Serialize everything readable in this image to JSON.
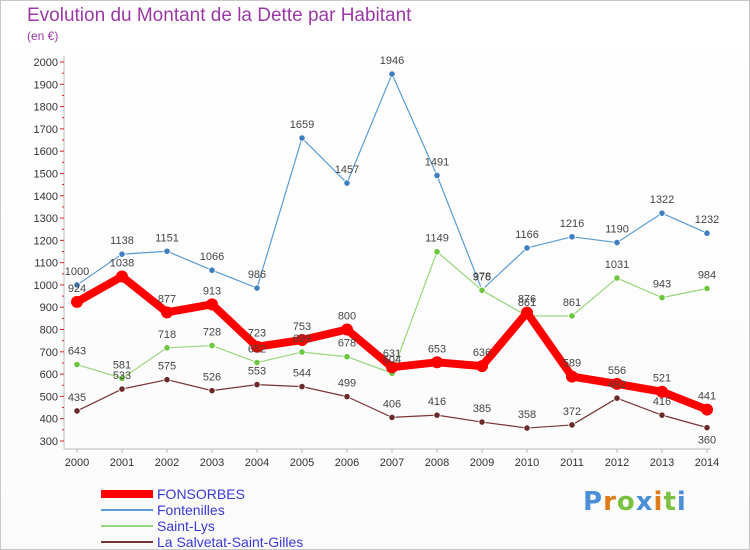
{
  "chart_data": {
    "type": "line",
    "title": "Evolution du Montant de la Dette par Habitant",
    "subtitle": "(en €)",
    "xlabel": "",
    "ylabel": "",
    "x": [
      "2000",
      "2001",
      "2002",
      "2003",
      "2004",
      "2005",
      "2006",
      "2007",
      "2008",
      "2009",
      "2010",
      "2011",
      "2012",
      "2013",
      "2014"
    ],
    "ylim": [
      300,
      2000
    ],
    "yticks": [
      300,
      400,
      500,
      600,
      700,
      800,
      900,
      1000,
      1100,
      1200,
      1300,
      1400,
      1500,
      1600,
      1700,
      1800,
      1900,
      2000
    ],
    "grid": false,
    "legend_position": "bottom-left",
    "series": [
      {
        "name": "Fontenilles",
        "color": "#5b9bd5",
        "marker_color": "#3f7fc0",
        "line_width": 1.2,
        "values": [
          1000,
          1138,
          1151,
          1066,
          986,
          1659,
          1457,
          1946,
          1491,
          978,
          1166,
          1216,
          1190,
          1322,
          1232
        ]
      },
      {
        "name": "Saint-Lys",
        "color": "#97d67a",
        "marker_color": "#6cc63e",
        "line_width": 1.2,
        "values": [
          643,
          581,
          718,
          728,
          652,
          699,
          678,
          604,
          1149,
          976,
          861,
          861,
          1031,
          943,
          984
        ]
      },
      {
        "name": "La Salvetat-Saint-Gilles",
        "color": "#7a3434",
        "marker_color": "#6b2a2a",
        "line_width": 1.2,
        "values": [
          435,
          533,
          575,
          526,
          553,
          544,
          499,
          406,
          416,
          385,
          358,
          372,
          492,
          416,
          360
        ]
      },
      {
        "name": "FONSORBES",
        "color": "#ff0000",
        "marker_color": "#ff0000",
        "line_width": 8,
        "values": [
          924,
          1038,
          877,
          913,
          723,
          753,
          800,
          631,
          653,
          636,
          876,
          589,
          556,
          521,
          441
        ]
      }
    ],
    "data_labels": [
      {
        "series": "Fontenilles",
        "labels": [
          "1000",
          "1138",
          "1151",
          "1066",
          "986",
          "1659",
          "1457",
          "1946",
          "1491",
          "978",
          "1166",
          "1216",
          "1190",
          "1322",
          "1232"
        ],
        "offsets": [
          -10,
          -10,
          -10,
          -10,
          -10,
          -10,
          -10,
          -10,
          -10,
          -10,
          -10,
          -10,
          -10,
          -10,
          -10
        ]
      },
      {
        "series": "Saint-Lys",
        "labels": [
          "643",
          "581",
          "718",
          "728",
          "652",
          "699",
          "678",
          "604",
          "1149",
          "976",
          "861",
          "861",
          "1031",
          "943",
          "984"
        ],
        "offsets": [
          -10,
          -10,
          -10,
          -10,
          -10,
          -10,
          -10,
          -10,
          -10,
          -10,
          -10,
          -10,
          -10,
          -10,
          -10
        ]
      },
      {
        "series": "La Salvetat-Saint-Gilles",
        "labels": [
          "435",
          "533",
          "575",
          "526",
          "553",
          "544",
          "499",
          "406",
          "416",
          "385",
          "358",
          "372",
          "492",
          "416",
          "360"
        ],
        "offsets": [
          -10,
          -10,
          -10,
          -10,
          -10,
          -10,
          -10,
          -10,
          -10,
          -10,
          -10,
          -10,
          -10,
          -10,
          16
        ]
      },
      {
        "series": "FONSORBES",
        "labels": [
          "924",
          "1038",
          "877",
          "913",
          "723",
          "753",
          "800",
          "631",
          "653",
          "636",
          "876",
          "589",
          "556",
          "521",
          "441"
        ],
        "offsets": [
          -10,
          -10,
          -10,
          -10,
          -10,
          -10,
          -10,
          -10,
          -10,
          -10,
          -10,
          -10,
          -10,
          -10,
          -10
        ]
      }
    ],
    "legend": [
      {
        "name": "FONSORBES",
        "color": "#ff0000",
        "height": 8
      },
      {
        "name": "Fontenilles",
        "color": "#5b9bd5",
        "height": 2
      },
      {
        "name": "Saint-Lys",
        "color": "#97d67a",
        "height": 2
      },
      {
        "name": "La Salvetat-Saint-Gilles",
        "color": "#7a3434",
        "height": 2
      }
    ]
  },
  "logo": {
    "text": "Proxiti",
    "colors": [
      "#4a8fd8",
      "#e07b1a",
      "#7cc242",
      "#4a8fd8",
      "#e07b1a",
      "#7cc242",
      "#4a8fd8"
    ]
  }
}
